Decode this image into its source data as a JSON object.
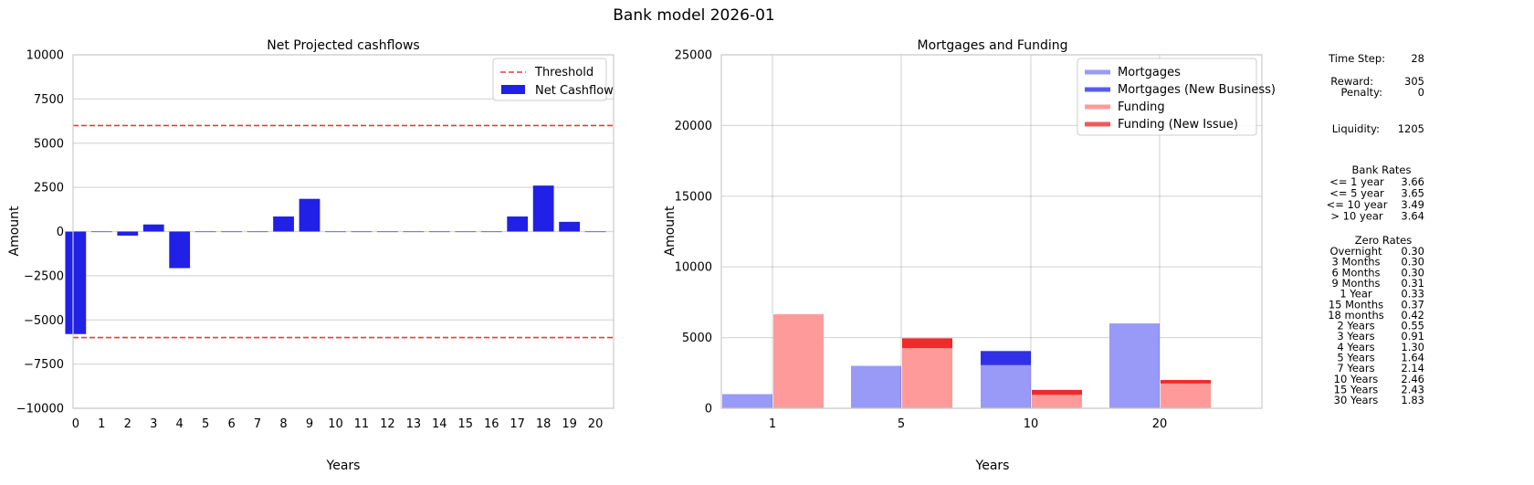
{
  "figure": {
    "suptitle": "Bank model 2026-01"
  },
  "chart_data": [
    {
      "type": "bar",
      "title": "Net Projected cashflows",
      "xlabel": "Years",
      "ylabel": "Amount",
      "categories": [
        "0",
        "1",
        "2",
        "3",
        "4",
        "5",
        "6",
        "7",
        "8",
        "9",
        "10",
        "11",
        "12",
        "13",
        "14",
        "15",
        "16",
        "17",
        "18",
        "19",
        "20"
      ],
      "series": [
        {
          "name": "Net Cashflow",
          "color": "#2020e6",
          "values": [
            -5800,
            0,
            -230,
            400,
            -2070,
            0,
            0,
            0,
            850,
            1850,
            0,
            0,
            0,
            0,
            0,
            0,
            0,
            850,
            2600,
            550,
            0
          ]
        }
      ],
      "threshold": {
        "name": "Threshold",
        "color": "#e04040",
        "values": [
          6000,
          -6000
        ]
      },
      "ylim": [
        -10000,
        10000
      ],
      "yticks": [
        "10000",
        "7500",
        "5000",
        "2500",
        "0",
        "−2500",
        "−5000",
        "−7500",
        "−10000"
      ],
      "ytick_values": [
        10000,
        7500,
        5000,
        2500,
        0,
        -2500,
        -5000,
        -7500,
        -10000
      ],
      "grid": true,
      "legend": "top-right"
    },
    {
      "type": "bar",
      "title": "Mortgages and Funding",
      "xlabel": "Years",
      "ylabel": "Amount",
      "categories": [
        "1",
        "5",
        "10",
        "20"
      ],
      "series": [
        {
          "name": "Mortgages",
          "color": "#9999f7",
          "values": [
            1000,
            3000,
            3050,
            6000
          ]
        },
        {
          "name": "Mortgages (New Business)",
          "color": "#3030e8",
          "values": [
            0,
            0,
            1000,
            0
          ]
        },
        {
          "name": "Funding",
          "color": "#ff9a9a",
          "values": [
            6650,
            4250,
            950,
            1750
          ]
        },
        {
          "name": "Funding (New Issue)",
          "color": "#ee2a2a",
          "values": [
            0,
            700,
            350,
            250
          ]
        }
      ],
      "ylim": [
        0,
        25000
      ],
      "yticks": [
        "25000",
        "20000",
        "15000",
        "10000",
        "5000",
        "0"
      ],
      "ytick_values": [
        25000,
        20000,
        15000,
        10000,
        5000,
        0
      ],
      "grid": true,
      "legend": "top-right"
    }
  ],
  "side_panel": {
    "stats": [
      {
        "label": "Time Step:",
        "value": "28"
      },
      {
        "label": "Reward:",
        "value": "305"
      },
      {
        "label": "Penalty:",
        "value": "0"
      },
      {
        "label": "Liquidity:",
        "value": "1205"
      }
    ],
    "bank_rates": {
      "title": "Bank Rates",
      "rows": [
        {
          "label": "<= 1 year",
          "value": "3.66"
        },
        {
          "label": "<= 5 year",
          "value": "3.65"
        },
        {
          "label": "<= 10 year",
          "value": "3.49"
        },
        {
          "label": "> 10 year",
          "value": "3.64"
        }
      ]
    },
    "zero_rates": {
      "title": "Zero Rates",
      "rows": [
        {
          "label": "Overnight",
          "value": "0.30"
        },
        {
          "label": "3 Months",
          "value": "0.30"
        },
        {
          "label": "6 Months",
          "value": "0.30"
        },
        {
          "label": "9 Months",
          "value": "0.31"
        },
        {
          "label": "1 Year",
          "value": "0.33"
        },
        {
          "label": "15 Months",
          "value": "0.37"
        },
        {
          "label": "18 months",
          "value": "0.42"
        },
        {
          "label": "2 Years",
          "value": "0.55"
        },
        {
          "label": "3 Years",
          "value": "0.91"
        },
        {
          "label": "4 Years",
          "value": "1.30"
        },
        {
          "label": "5 Years",
          "value": "1.64"
        },
        {
          "label": "7 Years",
          "value": "2.14"
        },
        {
          "label": "10 Years",
          "value": "2.46"
        },
        {
          "label": "15 Years",
          "value": "2.43"
        },
        {
          "label": "30 Years",
          "value": "1.83"
        }
      ]
    }
  }
}
